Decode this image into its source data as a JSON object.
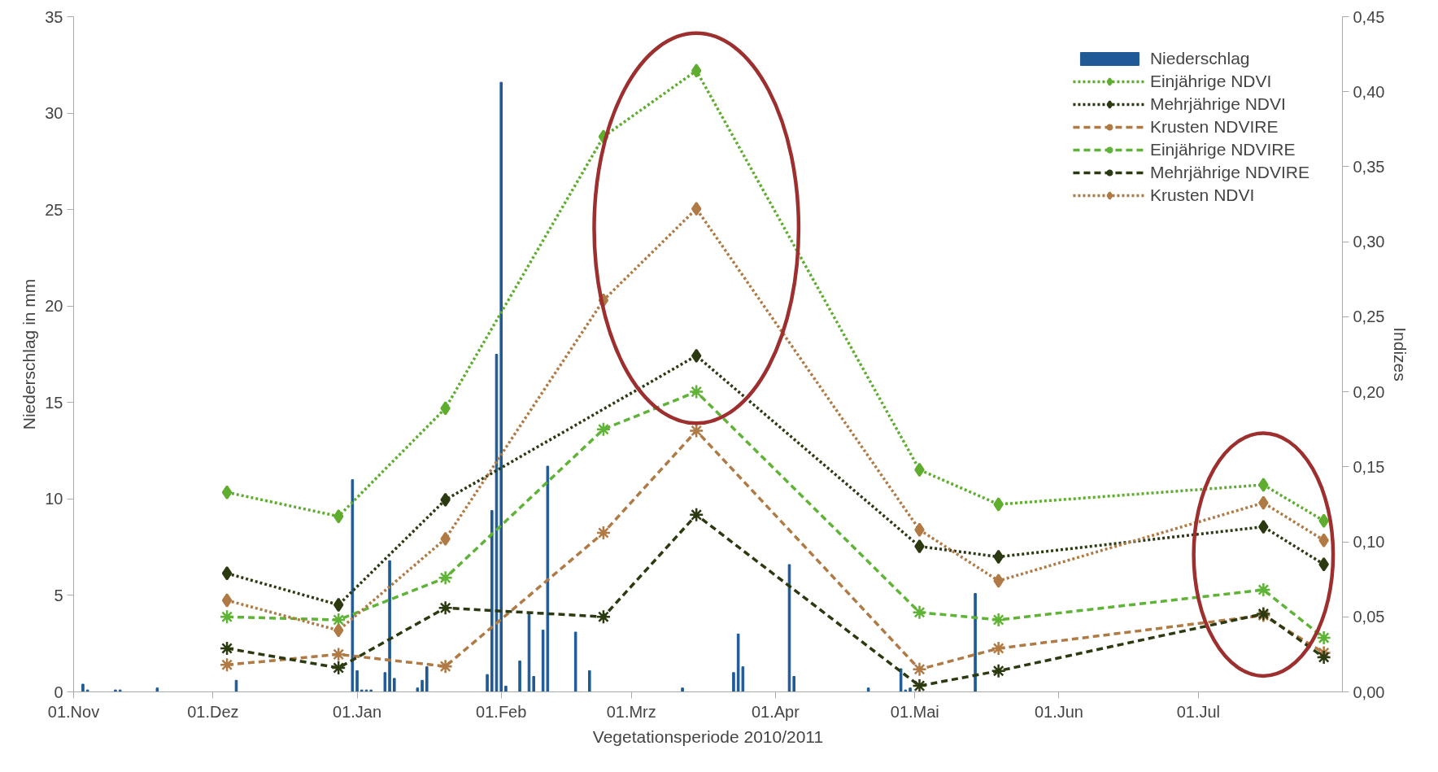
{
  "chart_data": {
    "type": "line",
    "xlabel": "Vegetationsperiode 2010/2011",
    "ylabel": "Niederschlag in mm",
    "y2label": "Indizes",
    "xlim": [
      "2010-11-01",
      "2011-08-01"
    ],
    "xticks": [
      {
        "value": "2010-11-01",
        "label": "01.Nov"
      },
      {
        "value": "2010-12-01",
        "label": "01.Dez"
      },
      {
        "value": "2011-01-01",
        "label": "01.Jan"
      },
      {
        "value": "2011-02-01",
        "label": "01.Feb"
      },
      {
        "value": "2011-03-01",
        "label": "01.Mrz"
      },
      {
        "value": "2011-04-01",
        "label": "01.Apr"
      },
      {
        "value": "2011-05-01",
        "label": "01.Mai"
      },
      {
        "value": "2011-06-01",
        "label": "01.Jun"
      },
      {
        "value": "2011-07-01",
        "label": "01.Jul"
      }
    ],
    "ylim": [
      0,
      35
    ],
    "yticks": [
      0,
      5,
      10,
      15,
      20,
      25,
      30,
      35
    ],
    "y2lim": [
      0,
      0.45
    ],
    "y2ticks": [
      {
        "value": 0,
        "label": "0,00"
      },
      {
        "value": 0.05,
        "label": "0,05"
      },
      {
        "value": 0.1,
        "label": "0,10"
      },
      {
        "value": 0.15,
        "label": "0,15"
      },
      {
        "value": 0.2,
        "label": "0,20"
      },
      {
        "value": 0.25,
        "label": "0,25"
      },
      {
        "value": 0.3,
        "label": "0,30"
      },
      {
        "value": 0.35,
        "label": "0,35"
      },
      {
        "value": 0.4,
        "label": "0,40"
      },
      {
        "value": 0.45,
        "label": "0,45"
      }
    ],
    "grid": false,
    "legend": "top right",
    "x": [
      "2010-12-04",
      "2010-12-28",
      "2011-01-20",
      "2011-02-23",
      "2011-03-15",
      "2011-05-02",
      "2011-05-19",
      "2011-07-15",
      "2011-07-28"
    ],
    "series": [
      {
        "name": "Niederschlag",
        "type": "bar",
        "color": "#1f5a96",
        "x": [
          "2010-11-03",
          "2010-11-04",
          "2010-11-10",
          "2010-11-11",
          "2010-11-19",
          "2010-12-06",
          "2010-12-31",
          "2011-01-01",
          "2011-01-02",
          "2011-01-03",
          "2011-01-04",
          "2011-01-07",
          "2011-01-08",
          "2011-01-09",
          "2011-01-14",
          "2011-01-15",
          "2011-01-16",
          "2011-01-29",
          "2011-01-30",
          "2011-01-31",
          "2011-02-01",
          "2011-02-02",
          "2011-02-05",
          "2011-02-07",
          "2011-02-08",
          "2011-02-10",
          "2011-02-11",
          "2011-02-17",
          "2011-02-20",
          "2011-03-12",
          "2011-03-23",
          "2011-03-24",
          "2011-03-25",
          "2011-04-04",
          "2011-04-05",
          "2011-04-21",
          "2011-04-28",
          "2011-04-29",
          "2011-04-30",
          "2011-05-14"
        ],
        "values": [
          0.4,
          0.1,
          0.1,
          0.1,
          0.2,
          0.6,
          11.0,
          1.1,
          0.1,
          0.1,
          0.1,
          1.0,
          6.8,
          0.7,
          0.2,
          0.6,
          1.3,
          0.9,
          9.4,
          17.5,
          31.6,
          0.3,
          1.6,
          4.1,
          0.8,
          3.2,
          11.7,
          3.1,
          1.1,
          0.2,
          1.0,
          3.0,
          1.3,
          6.6,
          0.8,
          0.2,
          1.2,
          0.1,
          0.2,
          5.1
        ]
      },
      {
        "name": "Einjährige NDVI",
        "axis": "y2",
        "color": "#5fad2f",
        "marker": "diamond",
        "line_style": "dotted",
        "values": [
          0.133,
          0.117,
          0.189,
          0.37,
          0.414,
          0.148,
          0.125,
          0.138,
          0.114
        ]
      },
      {
        "name": "Mehrjährige NDVI",
        "axis": "y2",
        "color": "#2c3a12",
        "marker": "diamond",
        "line_style": "dotted",
        "values": [
          0.079,
          0.058,
          0.128,
          null,
          0.224,
          0.097,
          0.09,
          0.11,
          0.085
        ]
      },
      {
        "name": "Krusten NDVIRE",
        "axis": "y2",
        "color": "#b07a45",
        "marker": "cross",
        "line_style": "dashed",
        "values": [
          0.018,
          0.025,
          0.017,
          0.106,
          0.174,
          0.015,
          0.029,
          0.051,
          0.026
        ]
      },
      {
        "name": "Einjährige NDVIRE",
        "axis": "y2",
        "color": "#5fb336",
        "marker": "cross",
        "line_style": "dashed",
        "values": [
          0.05,
          0.048,
          0.076,
          0.175,
          0.2,
          0.053,
          0.048,
          0.068,
          0.036
        ]
      },
      {
        "name": "Mehrjährige NDVIRE",
        "axis": "y2",
        "color": "#2c3a12",
        "marker": "cross",
        "line_style": "dashed",
        "values": [
          0.029,
          0.016,
          0.056,
          0.05,
          0.118,
          0.004,
          0.014,
          0.052,
          0.023
        ]
      },
      {
        "name": "Krusten NDVI",
        "axis": "y2",
        "color": "#b07a45",
        "marker": "diamond",
        "line_style": "dotted",
        "values": [
          0.061,
          0.041,
          0.102,
          0.261,
          0.322,
          0.108,
          0.074,
          0.126,
          0.101
        ]
      }
    ]
  }
}
